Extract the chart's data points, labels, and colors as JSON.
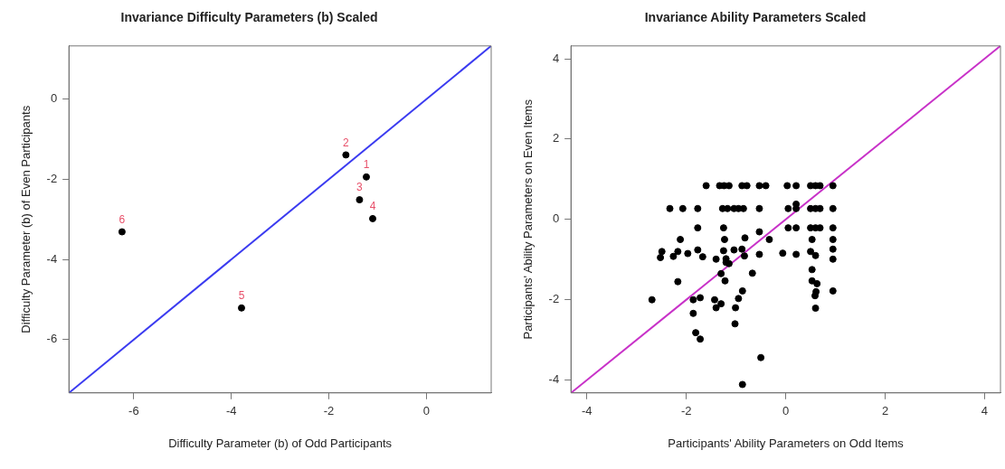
{
  "chart_data": [
    {
      "type": "scatter",
      "title": "Invariance Difficulty Parameters (b) Scaled",
      "xlabel": "Difficulty Parameter (b) of Odd Participants",
      "ylabel": "Difficulty Parameter (b) of Even Participants",
      "xlim": [
        -7.33,
        1.33
      ],
      "ylim": [
        -7.33,
        1.33
      ],
      "xticks": [
        -6,
        -4,
        -2,
        0
      ],
      "yticks": [
        -6,
        -4,
        -2,
        0
      ],
      "marker": "circle",
      "series": [
        {
          "color": "#000000",
          "x": [
            -1.23,
            -1.65,
            -1.37,
            -1.1,
            -3.79,
            -6.24
          ],
          "values": [
            -1.94,
            -1.39,
            -2.51,
            -2.98,
            -5.21,
            -3.31
          ]
        },
        {
          "type": "line",
          "marker": "none",
          "color": "#3b3bf0",
          "x": [
            -7.33,
            1.33
          ],
          "values": [
            -7.33,
            1.33
          ]
        }
      ],
      "annotations": [
        {
          "text": "1",
          "x": -1.23,
          "y": -1.94
        },
        {
          "text": "2",
          "x": -1.65,
          "y": -1.39
        },
        {
          "text": "3",
          "x": -1.37,
          "y": -2.51
        },
        {
          "text": "4",
          "x": -1.1,
          "y": -2.98
        },
        {
          "text": "5",
          "x": -3.79,
          "y": -5.21
        },
        {
          "text": "6",
          "x": -6.24,
          "y": -3.31
        }
      ]
    },
    {
      "type": "scatter",
      "title": "Invariance Ability Parameters Scaled",
      "xlabel": "Participants' Ability Parameters on Odd Items",
      "ylabel": "Participants' Ability Parameters on Even Items",
      "xlim": [
        -4.32,
        4.32
      ],
      "ylim": [
        -4.32,
        4.32
      ],
      "xticks": [
        -4,
        -2,
        0,
        2,
        4
      ],
      "yticks": [
        -4,
        -2,
        0,
        2,
        4
      ],
      "marker": "circle",
      "series": [
        {
          "color": "#000000",
          "x": [
            -1.6,
            -1.33,
            -1.24,
            -1.14,
            -0.88,
            -0.78,
            -0.53,
            -0.4,
            0.03,
            0.21,
            0.5,
            0.6,
            0.69,
            0.95,
            -2.33,
            -2.07,
            -1.77,
            -1.27,
            -1.17,
            -1.04,
            -0.95,
            -0.85,
            -0.53,
            0.05,
            0.21,
            0.5,
            0.6,
            0.69,
            0.95,
            0.21,
            -1.77,
            -1.25,
            0.05,
            0.21,
            0.5,
            0.6,
            0.69,
            0.95,
            -0.53,
            -2.12,
            -1.23,
            -0.82,
            -0.33,
            0.53,
            0.95,
            -2.49,
            -2.52,
            -2.26,
            -2.17,
            -1.97,
            -1.77,
            -1.67,
            -1.4,
            -1.25,
            -1.2,
            -1.04,
            -0.88,
            -0.83,
            -0.53,
            -0.06,
            0.21,
            0.5,
            0.6,
            0.95,
            0.95,
            -1.2,
            -1.14,
            -0.67,
            0.53,
            -1.3,
            -2.17,
            -1.22,
            0.53,
            0.63,
            -0.87,
            0.95,
            0.61,
            -2.69,
            -1.86,
            -1.72,
            -1.43,
            -1.3,
            -0.95,
            0.59,
            -1.4,
            -1.01,
            0.6,
            -1.86,
            -1.02,
            -1.81,
            -1.72,
            -0.5,
            -0.87
          ],
          "values": [
            0.84,
            0.84,
            0.84,
            0.84,
            0.84,
            0.84,
            0.84,
            0.84,
            0.84,
            0.84,
            0.84,
            0.84,
            0.84,
            0.84,
            0.27,
            0.27,
            0.27,
            0.27,
            0.27,
            0.27,
            0.27,
            0.27,
            0.27,
            0.27,
            0.27,
            0.27,
            0.27,
            0.27,
            0.27,
            0.38,
            -0.21,
            -0.21,
            -0.21,
            -0.21,
            -0.21,
            -0.21,
            -0.21,
            -0.21,
            -0.31,
            -0.5,
            -0.5,
            -0.46,
            -0.5,
            -0.5,
            -0.5,
            -0.8,
            -0.95,
            -0.92,
            -0.8,
            -0.85,
            -0.76,
            -0.93,
            -0.99,
            -0.78,
            -0.98,
            -0.76,
            -0.74,
            -0.91,
            -0.87,
            -0.84,
            -0.87,
            -0.8,
            -0.9,
            -0.74,
            -0.99,
            -1.07,
            -1.1,
            -1.34,
            -1.25,
            -1.35,
            -1.55,
            -1.53,
            -1.53,
            -1.6,
            -1.78,
            -1.78,
            -1.8,
            -2.0,
            -2.0,
            -1.95,
            -2.0,
            -2.1,
            -1.97,
            -1.9,
            -2.2,
            -2.2,
            -2.21,
            -2.34,
            -2.6,
            -2.82,
            -2.98,
            -3.44,
            -4.11
          ]
        },
        {
          "type": "line",
          "marker": "none",
          "color": "#c832c8",
          "x": [
            -4.32,
            4.32
          ],
          "values": [
            -4.32,
            4.32
          ]
        }
      ]
    }
  ]
}
